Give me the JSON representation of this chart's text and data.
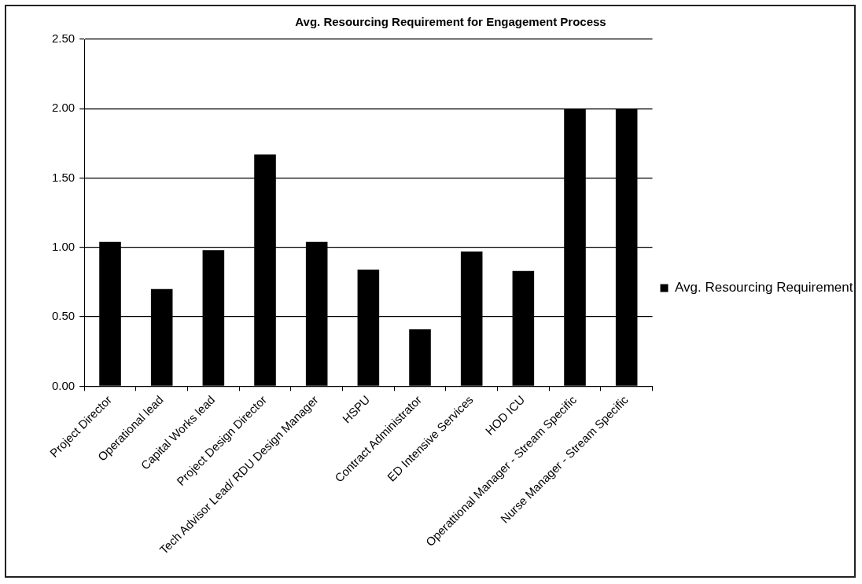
{
  "chart_data": {
    "type": "bar",
    "title": "Avg. Resourcing Requirement for Engagement Process",
    "categories": [
      "Project Director",
      "Operational lead",
      "Capital Works lead",
      "Project Design Director",
      "Tech Advisor Lead/ RDU Design Manager",
      "HSPU",
      "Contract Administrator",
      "ED Intensive Services",
      "HOD ICU",
      "Operattional Manager - Stream Specific",
      "Nurse Manager - Stream Specific"
    ],
    "series": [
      {
        "name": "Avg. Resourcing Requirement",
        "color": "#000000",
        "values": [
          1.04,
          0.7,
          0.98,
          1.67,
          1.04,
          0.84,
          0.41,
          0.97,
          0.83,
          2.0,
          2.0
        ]
      }
    ],
    "ylim": [
      0,
      2.5
    ],
    "yticks": [
      {
        "value": 0,
        "label": "0.00"
      },
      {
        "value": 0.5,
        "label": "0.50"
      },
      {
        "value": 1,
        "label": "1.00"
      },
      {
        "value": 1.5,
        "label": "1.50"
      },
      {
        "value": 2,
        "label": "2.00"
      },
      {
        "value": 2.5,
        "label": "2.50"
      }
    ],
    "grid": "y",
    "legend": "right"
  }
}
